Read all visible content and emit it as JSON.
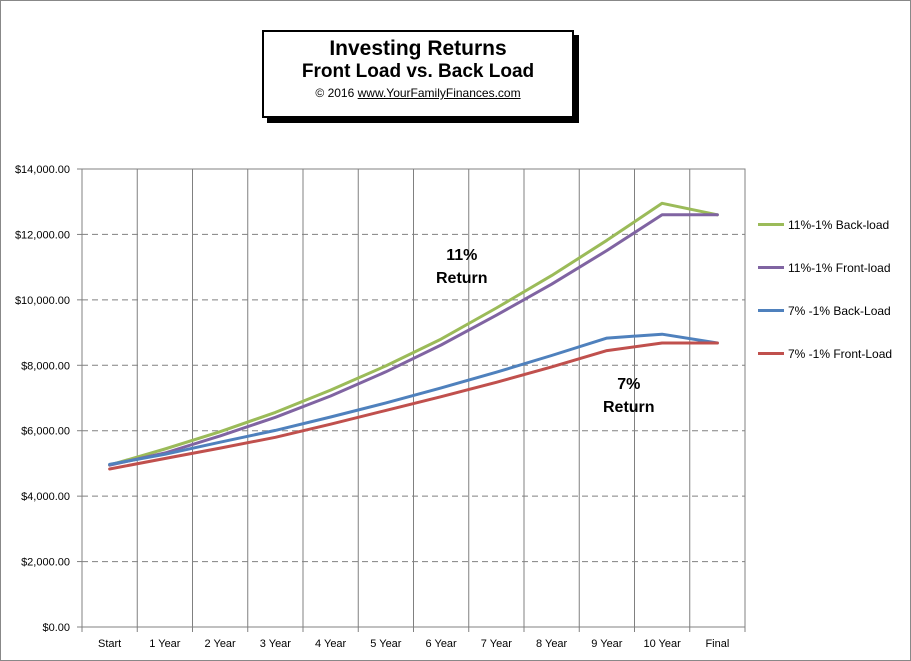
{
  "chart_data": {
    "type": "line",
    "title": "Investing Returns",
    "subtitle": "Front Load vs. Back Load",
    "copyright_prefix": "© 2016",
    "copyright_site": "www.YourFamilyFinances.com",
    "xlabel": "",
    "ylabel": "",
    "categories": [
      "Start",
      "1 Year",
      "2 Year",
      "3 Year",
      "4 Year",
      "5 Year",
      "6 Year",
      "7 Year",
      "8 Year",
      "9 Year",
      "10 Year",
      "Final"
    ],
    "ylim": [
      0,
      14000
    ],
    "ytick_values": [
      0,
      2000,
      4000,
      6000,
      8000,
      10000,
      12000,
      14000
    ],
    "ytick_labels": [
      "$0.00",
      "$2,000.00",
      "$4,000.00",
      "$6,000.00",
      "$8,000.00",
      "$10,000.00",
      "$12,000.00",
      "$14,000.00"
    ],
    "grid": true,
    "legend_position": "right",
    "series": [
      {
        "name": "11%-1% Back-load",
        "color": "#9bbb59",
        "values": [
          4950,
          5440,
          5970,
          6560,
          7240,
          7980,
          8800,
          9750,
          10740,
          11820,
          12950,
          12600
        ]
      },
      {
        "name": "11%-1% Front-load",
        "color": "#8064a2",
        "values": [
          4950,
          5320,
          5840,
          6410,
          7060,
          7800,
          8620,
          9530,
          10480,
          11510,
          12600,
          12600
        ]
      },
      {
        "name": "7% -1% Back-Load",
        "color": "#4f81bd",
        "values": [
          4970,
          5280,
          5650,
          6010,
          6420,
          6850,
          7310,
          7790,
          8300,
          8830,
          8950,
          8680
        ]
      },
      {
        "name": "7% -1% Front-Load",
        "color": "#c0504d",
        "values": [
          4830,
          5150,
          5470,
          5800,
          6200,
          6620,
          7040,
          7480,
          7950,
          8450,
          8680,
          8680
        ]
      }
    ],
    "annotations": [
      {
        "line1": "11%",
        "line2": "Return"
      },
      {
        "line1": "7%",
        "line2": "Return"
      }
    ]
  }
}
